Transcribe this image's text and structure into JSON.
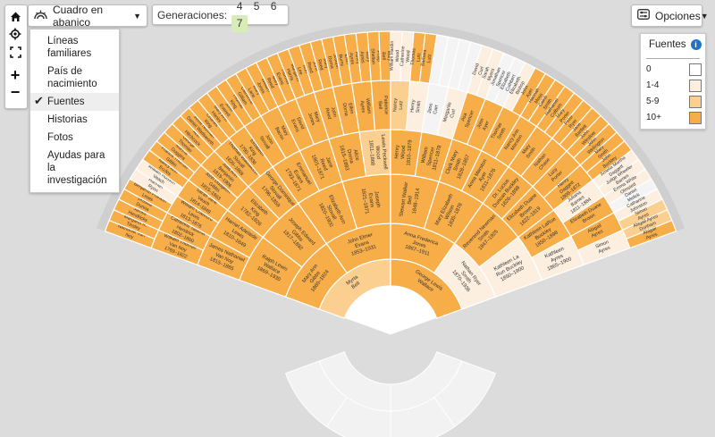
{
  "controls": {
    "home": "home-icon",
    "locate": "locate-icon",
    "fullscreen": "fullscreen-icon",
    "zoom_in": "+",
    "zoom_out": "−"
  },
  "view_select": {
    "label": "Cuadro en abanico"
  },
  "generations": {
    "label": "Generaciones:",
    "options": [
      "4",
      "5",
      "6",
      "7"
    ],
    "active": "7"
  },
  "menu": {
    "items": [
      {
        "label": "Líneas familiares",
        "selected": false
      },
      {
        "label": "País de nacimiento",
        "selected": false
      },
      {
        "label": "Fuentes",
        "selected": true
      },
      {
        "label": "Historias",
        "selected": false
      },
      {
        "label": "Fotos",
        "selected": false
      },
      {
        "label": "Ayudas para la investigación",
        "selected": false
      }
    ]
  },
  "options": {
    "label": "Opciones"
  },
  "legend": {
    "title": "Fuentes",
    "rows": [
      {
        "label": "0",
        "color": "#ffffff"
      },
      {
        "label": "1-4",
        "color": "#fcefe0"
      },
      {
        "label": "5-9",
        "color": "#fbcf8f"
      },
      {
        "label": "10+",
        "color": "#f7ad48"
      }
    ]
  },
  "colors": {
    "c0": "#f4f4f4",
    "c1": "#fcefe0",
    "c2": "#fbcf8f",
    "c3": "#f7ad48"
  },
  "fan": {
    "ring1": [
      {
        "n": "Myrta Bell",
        "d": "",
        "c": "c2"
      },
      {
        "n": "George Lewis Wallace",
        "d": "",
        "c": "c3"
      }
    ],
    "ring2": [
      {
        "n": "Mary Ann Gibbs",
        "d": "1860–1924",
        "c": "c3"
      },
      {
        "n": "John Elmer Evans",
        "d": "1853–1931",
        "c": "c3"
      },
      {
        "n": "Anna Frederica Jones",
        "d": "1867–1911",
        "c": "c3"
      },
      {
        "n": "Nathan Ryer Smith",
        "d": "1870–1936",
        "c": "c1"
      }
    ],
    "ring3": [
      {
        "n": "Ralph Lewis Wallace",
        "d": "1869–1930",
        "c": "c3"
      },
      {
        "n": "Joseph Edward Gibbs",
        "d": "1817–1892",
        "c": "c3"
      },
      {
        "n": "Elizabeth Ann Stovall",
        "d": "1820–1900",
        "c": "c3"
      },
      {
        "n": "Joseph Evans",
        "d": "1821–1871",
        "c": "c3"
      },
      {
        "n": "Stewart Walker Bell",
        "d": "1848–1914",
        "c": "c3"
      },
      {
        "n": "Mary Elizabeth Wilson",
        "d": "1835–1878",
        "c": "c3"
      },
      {
        "n": "Reverend Newman Smith",
        "d": "1847–1925",
        "c": "c3"
      },
      {
        "n": "Kathleen La Run Buckley",
        "d": "1850–1900",
        "c": "c1"
      }
    ],
    "ring4": [
      {
        "n": "James Nathaniel Van Noy",
        "d": "1815–1865",
        "c": "c3"
      },
      {
        "n": "Harriet Adelaide Lewis",
        "d": "1810–1849",
        "c": "c3"
      },
      {
        "n": "Elizabeth King",
        "d": "1782–1826",
        "c": "c3"
      },
      {
        "n": "George Dominique Stovall",
        "d": "1796–1859",
        "c": "c3"
      },
      {
        "n": "Emmanuel Evans",
        "d": "1793–1871",
        "c": "c3"
      },
      {
        "n": "Jane Reed",
        "d": "1801–1871",
        "c": "c3"
      },
      {
        "n": "Alice Dorna",
        "d": "1815–1893",
        "c": "c3"
      },
      {
        "n": "Lewis Peckwell Wood",
        "d": "1811–1868",
        "c": "c2"
      },
      {
        "n": "Henry Wood",
        "d": "1810–1879",
        "c": "c3"
      },
      {
        "n": "William Spencer",
        "d": "1811–1878",
        "c": "c3"
      },
      {
        "n": "Clark Mary Smith",
        "d": "1828–1857",
        "c": "c3"
      },
      {
        "n": "Anna Marston Ayer",
        "d": "1811–1876",
        "c": "c3"
      },
      {
        "n": "Dr. Lucius Duncan Buckley",
        "d": "1826–1898",
        "c": "c3"
      },
      {
        "n": "Elizabeth Duane Brown",
        "d": "1822–1919",
        "c": "c3"
      },
      {
        "n": "Kathleen LaRue Buckley",
        "d": "1850–1898",
        "c": "c3"
      },
      {
        "n": "Kathleen Ayres",
        "d": "1865–1900",
        "c": "c1"
      }
    ],
    "ring5": [
      {
        "n": "William Thomas Van Noy",
        "d": "1769–1822",
        "c": "c3"
      },
      {
        "n": "Catherine Tabitha Hendrick",
        "d": "1802–1860",
        "c": "c3"
      },
      {
        "n": "William Crawford Lewis",
        "d": "1813–1876",
        "c": "c3"
      },
      {
        "n": "Sarah Jane Veach",
        "d": "1814–1849",
        "c": "c3"
      },
      {
        "n": "John Dudgeon Gibbs",
        "d": "1815–1863",
        "c": "c3"
      },
      {
        "n": "Julia Ann Benjamin",
        "d": "1819–1906",
        "c": "c3"
      },
      {
        "n": "Thomas Wadsworth Stovall",
        "d": "1826–1869",
        "c": "c3"
      },
      {
        "n": "Elizabeth King",
        "d": "1790–1836",
        "c": "c3"
      },
      {
        "n": "John Stovall",
        "d": "",
        "c": "c3"
      },
      {
        "n": "Mary Bacon",
        "d": "",
        "c": "c3"
      },
      {
        "n": "David Evans",
        "d": "",
        "c": "c3"
      },
      {
        "n": "Mary Jones",
        "d": "",
        "c": "c3"
      },
      {
        "n": "John Reed",
        "d": "",
        "c": "c3"
      },
      {
        "n": "Ellen Dorna",
        "d": "",
        "c": "c3"
      },
      {
        "n": "William Ayres",
        "d": "",
        "c": "c3"
      },
      {
        "n": "Patience Bell",
        "d": "",
        "c": "c3"
      },
      {
        "n": "Nancy Lutz",
        "d": "",
        "c": "c2"
      },
      {
        "n": "Henry Smith",
        "d": "",
        "c": "c1"
      },
      {
        "n": "Jane Carr",
        "d": "",
        "c": "c0"
      },
      {
        "n": "Margarite Curl",
        "d": "",
        "c": "c1"
      },
      {
        "n": "Asa Spencer",
        "d": "",
        "c": "c3"
      },
      {
        "n": "John Ayer",
        "d": "",
        "c": "c3"
      },
      {
        "n": "Thomas Smith",
        "d": "",
        "c": "c3"
      },
      {
        "n": "Nancy Ann Marston",
        "d": "",
        "c": "c3"
      },
      {
        "n": "Mary Smith",
        "d": "",
        "c": "c3"
      },
      {
        "n": "Nathan Chase",
        "d": "",
        "c": "c3"
      },
      {
        "n": "Lucy Porter",
        "d": "",
        "c": "c3"
      },
      {
        "n": "Henry Daggett",
        "d": "1808–1872",
        "c": "c3"
      },
      {
        "n": "Juliana Barnes",
        "d": "1811–1884",
        "c": "c1"
      },
      {
        "n": "Elizabeth Duane Brown",
        "d": "",
        "c": "c3"
      },
      {
        "n": "Abigail Ayres",
        "d": "",
        "c": "c3"
      },
      {
        "n": "Simon Ayres",
        "d": "",
        "c": "c1"
      }
    ],
    "ring6": [
      {
        "n": "Nathaniel Van Noy",
        "d": "",
        "c": "c3"
      },
      {
        "n": "Margaret R. Tinsley",
        "d": "",
        "c": "c3"
      },
      {
        "n": "James Hendricks",
        "d": "",
        "c": "c3"
      },
      {
        "n": "Drusilla Dunna",
        "d": "",
        "c": "c3"
      },
      {
        "n": "Benjamin Franklin Lewis",
        "d": "",
        "c": "c3"
      },
      {
        "n": "Hannah Ryon",
        "d": "",
        "c": "c1"
      },
      {
        "n": "William Hudson Veach",
        "d": "",
        "c": "c1"
      },
      {
        "n": "Nancy Ann Eccles",
        "d": "",
        "c": "c3"
      },
      {
        "n": "Francis Thomas Gibbs",
        "d": "",
        "c": "c3"
      },
      {
        "n": "Martha Duggins",
        "d": "",
        "c": "c3"
      },
      {
        "n": "George Thomas",
        "d": "",
        "c": "c3"
      },
      {
        "n": "Ann Hitchcock",
        "d": "",
        "c": "c3"
      },
      {
        "n": "Anne Norman Daniel Wadsworth",
        "d": "",
        "c": "c3"
      },
      {
        "n": "Charles King",
        "d": "",
        "c": "c3"
      },
      {
        "n": "Mary Ann Hanks",
        "d": "",
        "c": "c3"
      },
      {
        "n": "John Everett",
        "d": "",
        "c": "c3"
      },
      {
        "n": "Thomas King",
        "d": "",
        "c": "c3"
      },
      {
        "n": "Catherine Gilliam",
        "d": "",
        "c": "c3"
      },
      {
        "n": "Mary Lane",
        "d": "",
        "c": "c3"
      },
      {
        "n": "William Jones",
        "d": "",
        "c": "c3"
      },
      {
        "n": "Mary Reed",
        "d": "",
        "c": "c3"
      },
      {
        "n": "Thomas Evans",
        "d": "",
        "c": "c3"
      },
      {
        "n": "Margaret Harris",
        "d": "",
        "c": "c3"
      },
      {
        "n": "Ann Lee",
        "d": "",
        "c": "c3"
      },
      {
        "n": "John Reed",
        "d": "",
        "c": "c3"
      },
      {
        "n": "Mary Reed",
        "d": "",
        "c": "c3"
      },
      {
        "n": "Joseph Dorna",
        "d": "",
        "c": "c3"
      },
      {
        "n": "Ellen Burns",
        "d": "",
        "c": "c3"
      },
      {
        "n": "Henry Ayres",
        "d": "",
        "c": "c3"
      },
      {
        "n": "Mary Ayres",
        "d": "",
        "c": "c3"
      },
      {
        "n": "Philip Shelton",
        "d": "",
        "c": "c3"
      },
      {
        "n": "Mary Bell",
        "d": "",
        "c": "c3"
      },
      {
        "n": "William Hardin Wood",
        "d": "",
        "c": "c1"
      },
      {
        "n": "Catherine Wood",
        "d": "",
        "c": "c1"
      },
      {
        "n": "Thomas Lutz",
        "d": "",
        "c": "c3"
      },
      {
        "n": "Barbara Lutz",
        "d": "",
        "c": "c3"
      },
      {
        "n": "",
        "d": "",
        "c": "c0"
      },
      {
        "n": "",
        "d": "",
        "c": "c0"
      },
      {
        "n": "",
        "d": "",
        "c": "c0"
      },
      {
        "n": "",
        "d": "",
        "c": "c0"
      },
      {
        "n": "David Curl",
        "d": "",
        "c": "c1"
      },
      {
        "n": "Sarah Myers",
        "d": "",
        "c": "c1"
      },
      {
        "n": "Jonathan Spencer",
        "d": "",
        "c": "c0"
      },
      {
        "n": "Elizabeth Cuthbert",
        "d": "",
        "c": "c0"
      },
      {
        "n": "Elizabeth Bishop",
        "d": "",
        "c": "c1"
      },
      {
        "n": "John Ayer",
        "d": "",
        "c": "c3"
      },
      {
        "n": "Hannah Moss",
        "d": "",
        "c": "c3"
      },
      {
        "n": "Caleb Smith",
        "d": "",
        "c": "c3"
      },
      {
        "n": "Nathaniel Colburn",
        "d": "",
        "c": "c3"
      },
      {
        "n": "Mary Porter",
        "d": "",
        "c": "c3"
      },
      {
        "n": "Peter Ryer",
        "d": "",
        "c": "c3"
      },
      {
        "n": "Jane Bartlett",
        "d": "",
        "c": "c3"
      },
      {
        "n": "John Winslow",
        "d": "",
        "c": "c3"
      },
      {
        "n": "John Wellington",
        "d": "",
        "c": "c3"
      },
      {
        "n": "Mary Smith",
        "d": "",
        "c": "c3"
      },
      {
        "n": "John Buckley",
        "d": "",
        "c": "c3"
      },
      {
        "n": "Amelia Martha Daggett",
        "d": "",
        "c": "c1"
      },
      {
        "n": "Judge Wheeler Barnes",
        "d": "",
        "c": "c1"
      },
      {
        "n": "Emma White Olmsted",
        "d": "",
        "c": "c1"
      },
      {
        "n": "Daniel Melick",
        "d": "",
        "c": "c0"
      },
      {
        "n": "Catharine Johnston",
        "d": "",
        "c": "c1"
      },
      {
        "n": "Simon Ayres",
        "d": "",
        "c": "c2"
      },
      {
        "n": "Abigail Ayres Dunham",
        "d": "",
        "c": "c2"
      },
      {
        "n": "Abigail Ayres",
        "d": "",
        "c": "c3"
      }
    ]
  }
}
